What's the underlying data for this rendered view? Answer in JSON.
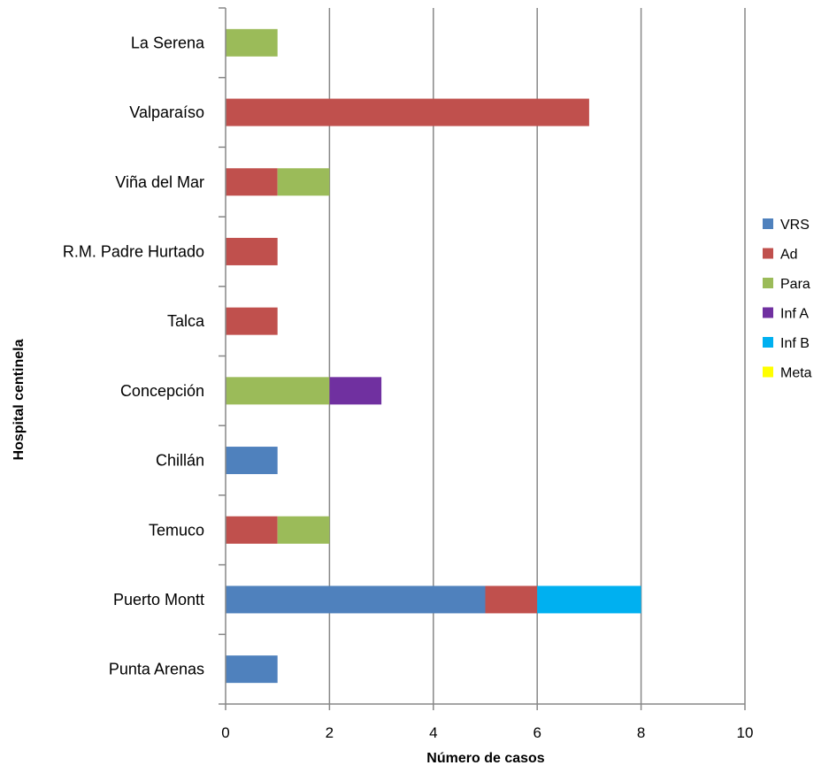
{
  "chart_data": {
    "type": "bar",
    "orientation": "horizontal",
    "stacked": true,
    "title": "",
    "xlabel": "Número de casos",
    "ylabel": "Hospital centinela",
    "xlim": [
      0,
      10
    ],
    "xticks": [
      0,
      2,
      4,
      6,
      8,
      10
    ],
    "grid": true,
    "legend_position": "right",
    "categories": [
      "La Serena",
      "Valparaíso",
      "Viña del Mar",
      "R.M. Padre Hurtado",
      "Talca",
      "Concepción",
      "Chillán",
      "Temuco",
      "Puerto Montt",
      "Punta Arenas"
    ],
    "series": [
      {
        "name": "VRS",
        "color": "#4F81BD",
        "values": [
          0,
          0,
          0,
          0,
          0,
          0,
          1,
          0,
          5,
          1
        ]
      },
      {
        "name": "Ad",
        "color": "#C0504D",
        "values": [
          0,
          7,
          1,
          1,
          1,
          0,
          0,
          1,
          1,
          0
        ]
      },
      {
        "name": "Para",
        "color": "#9BBB59",
        "values": [
          1,
          0,
          1,
          0,
          0,
          2,
          0,
          1,
          0,
          0
        ]
      },
      {
        "name": "Inf A",
        "color": "#7030A0",
        "values": [
          0,
          0,
          0,
          0,
          0,
          1,
          0,
          0,
          0,
          0
        ]
      },
      {
        "name": "Inf B",
        "color": "#00B0F0",
        "values": [
          0,
          0,
          0,
          0,
          0,
          0,
          0,
          0,
          2,
          0
        ]
      },
      {
        "name": "Meta",
        "color": "#FFFF00",
        "values": [
          0,
          0,
          0,
          0,
          0,
          0,
          0,
          0,
          0,
          0
        ]
      }
    ]
  }
}
